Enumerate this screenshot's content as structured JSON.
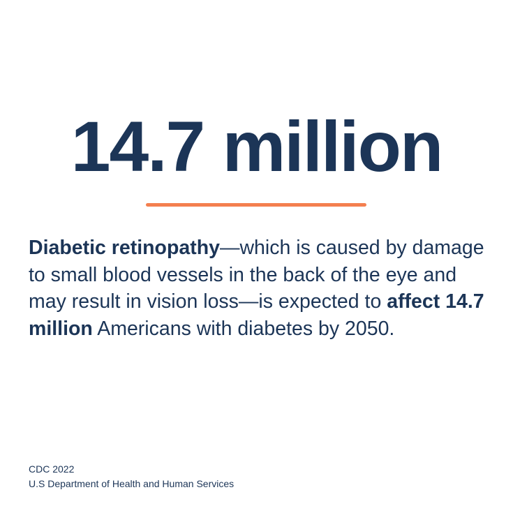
{
  "headline": "14.7 million",
  "body": {
    "lead_bold": "Diabetic retinopathy",
    "text_1": "—which is caused by damage to small blood vessels in the back of the eye and may result in vision loss—is expected to ",
    "mid_bold": "affect 14.7 million",
    "text_2": " Americans with diabetes by 2050."
  },
  "source": {
    "line_1": "CDC 2022",
    "line_2": "U.S Department of Health and Human Services"
  },
  "colors": {
    "text": "#1c3557",
    "accent": "#f47f4f",
    "background": "#ffffff"
  }
}
